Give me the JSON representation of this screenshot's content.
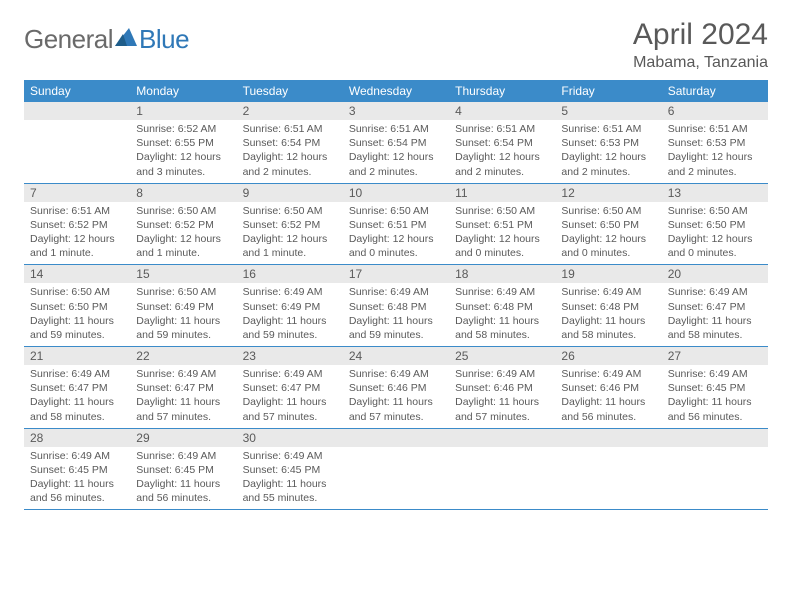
{
  "logo": {
    "general": "General",
    "blue": "Blue"
  },
  "title": "April 2024",
  "location": "Mabama, Tanzania",
  "colors": {
    "header_bg": "#3b8bc9",
    "header_text": "#ffffff",
    "daynum_bg": "#e9e9e9",
    "text": "#5a5a5a",
    "rule": "#3b8bc9",
    "logo_blue": "#2f78b7",
    "logo_grey": "#6a6a6a"
  },
  "weekdays": [
    "Sunday",
    "Monday",
    "Tuesday",
    "Wednesday",
    "Thursday",
    "Friday",
    "Saturday"
  ],
  "weeks": [
    [
      {
        "n": "",
        "sr": "",
        "ss": "",
        "dl": ""
      },
      {
        "n": "1",
        "sr": "Sunrise: 6:52 AM",
        "ss": "Sunset: 6:55 PM",
        "dl": "Daylight: 12 hours and 3 minutes."
      },
      {
        "n": "2",
        "sr": "Sunrise: 6:51 AM",
        "ss": "Sunset: 6:54 PM",
        "dl": "Daylight: 12 hours and 2 minutes."
      },
      {
        "n": "3",
        "sr": "Sunrise: 6:51 AM",
        "ss": "Sunset: 6:54 PM",
        "dl": "Daylight: 12 hours and 2 minutes."
      },
      {
        "n": "4",
        "sr": "Sunrise: 6:51 AM",
        "ss": "Sunset: 6:54 PM",
        "dl": "Daylight: 12 hours and 2 minutes."
      },
      {
        "n": "5",
        "sr": "Sunrise: 6:51 AM",
        "ss": "Sunset: 6:53 PM",
        "dl": "Daylight: 12 hours and 2 minutes."
      },
      {
        "n": "6",
        "sr": "Sunrise: 6:51 AM",
        "ss": "Sunset: 6:53 PM",
        "dl": "Daylight: 12 hours and 2 minutes."
      }
    ],
    [
      {
        "n": "7",
        "sr": "Sunrise: 6:51 AM",
        "ss": "Sunset: 6:52 PM",
        "dl": "Daylight: 12 hours and 1 minute."
      },
      {
        "n": "8",
        "sr": "Sunrise: 6:50 AM",
        "ss": "Sunset: 6:52 PM",
        "dl": "Daylight: 12 hours and 1 minute."
      },
      {
        "n": "9",
        "sr": "Sunrise: 6:50 AM",
        "ss": "Sunset: 6:52 PM",
        "dl": "Daylight: 12 hours and 1 minute."
      },
      {
        "n": "10",
        "sr": "Sunrise: 6:50 AM",
        "ss": "Sunset: 6:51 PM",
        "dl": "Daylight: 12 hours and 0 minutes."
      },
      {
        "n": "11",
        "sr": "Sunrise: 6:50 AM",
        "ss": "Sunset: 6:51 PM",
        "dl": "Daylight: 12 hours and 0 minutes."
      },
      {
        "n": "12",
        "sr": "Sunrise: 6:50 AM",
        "ss": "Sunset: 6:50 PM",
        "dl": "Daylight: 12 hours and 0 minutes."
      },
      {
        "n": "13",
        "sr": "Sunrise: 6:50 AM",
        "ss": "Sunset: 6:50 PM",
        "dl": "Daylight: 12 hours and 0 minutes."
      }
    ],
    [
      {
        "n": "14",
        "sr": "Sunrise: 6:50 AM",
        "ss": "Sunset: 6:50 PM",
        "dl": "Daylight: 11 hours and 59 minutes."
      },
      {
        "n": "15",
        "sr": "Sunrise: 6:50 AM",
        "ss": "Sunset: 6:49 PM",
        "dl": "Daylight: 11 hours and 59 minutes."
      },
      {
        "n": "16",
        "sr": "Sunrise: 6:49 AM",
        "ss": "Sunset: 6:49 PM",
        "dl": "Daylight: 11 hours and 59 minutes."
      },
      {
        "n": "17",
        "sr": "Sunrise: 6:49 AM",
        "ss": "Sunset: 6:48 PM",
        "dl": "Daylight: 11 hours and 59 minutes."
      },
      {
        "n": "18",
        "sr": "Sunrise: 6:49 AM",
        "ss": "Sunset: 6:48 PM",
        "dl": "Daylight: 11 hours and 58 minutes."
      },
      {
        "n": "19",
        "sr": "Sunrise: 6:49 AM",
        "ss": "Sunset: 6:48 PM",
        "dl": "Daylight: 11 hours and 58 minutes."
      },
      {
        "n": "20",
        "sr": "Sunrise: 6:49 AM",
        "ss": "Sunset: 6:47 PM",
        "dl": "Daylight: 11 hours and 58 minutes."
      }
    ],
    [
      {
        "n": "21",
        "sr": "Sunrise: 6:49 AM",
        "ss": "Sunset: 6:47 PM",
        "dl": "Daylight: 11 hours and 58 minutes."
      },
      {
        "n": "22",
        "sr": "Sunrise: 6:49 AM",
        "ss": "Sunset: 6:47 PM",
        "dl": "Daylight: 11 hours and 57 minutes."
      },
      {
        "n": "23",
        "sr": "Sunrise: 6:49 AM",
        "ss": "Sunset: 6:47 PM",
        "dl": "Daylight: 11 hours and 57 minutes."
      },
      {
        "n": "24",
        "sr": "Sunrise: 6:49 AM",
        "ss": "Sunset: 6:46 PM",
        "dl": "Daylight: 11 hours and 57 minutes."
      },
      {
        "n": "25",
        "sr": "Sunrise: 6:49 AM",
        "ss": "Sunset: 6:46 PM",
        "dl": "Daylight: 11 hours and 57 minutes."
      },
      {
        "n": "26",
        "sr": "Sunrise: 6:49 AM",
        "ss": "Sunset: 6:46 PM",
        "dl": "Daylight: 11 hours and 56 minutes."
      },
      {
        "n": "27",
        "sr": "Sunrise: 6:49 AM",
        "ss": "Sunset: 6:45 PM",
        "dl": "Daylight: 11 hours and 56 minutes."
      }
    ],
    [
      {
        "n": "28",
        "sr": "Sunrise: 6:49 AM",
        "ss": "Sunset: 6:45 PM",
        "dl": "Daylight: 11 hours and 56 minutes."
      },
      {
        "n": "29",
        "sr": "Sunrise: 6:49 AM",
        "ss": "Sunset: 6:45 PM",
        "dl": "Daylight: 11 hours and 56 minutes."
      },
      {
        "n": "30",
        "sr": "Sunrise: 6:49 AM",
        "ss": "Sunset: 6:45 PM",
        "dl": "Daylight: 11 hours and 55 minutes."
      },
      {
        "n": "",
        "sr": "",
        "ss": "",
        "dl": ""
      },
      {
        "n": "",
        "sr": "",
        "ss": "",
        "dl": ""
      },
      {
        "n": "",
        "sr": "",
        "ss": "",
        "dl": ""
      },
      {
        "n": "",
        "sr": "",
        "ss": "",
        "dl": ""
      }
    ]
  ]
}
